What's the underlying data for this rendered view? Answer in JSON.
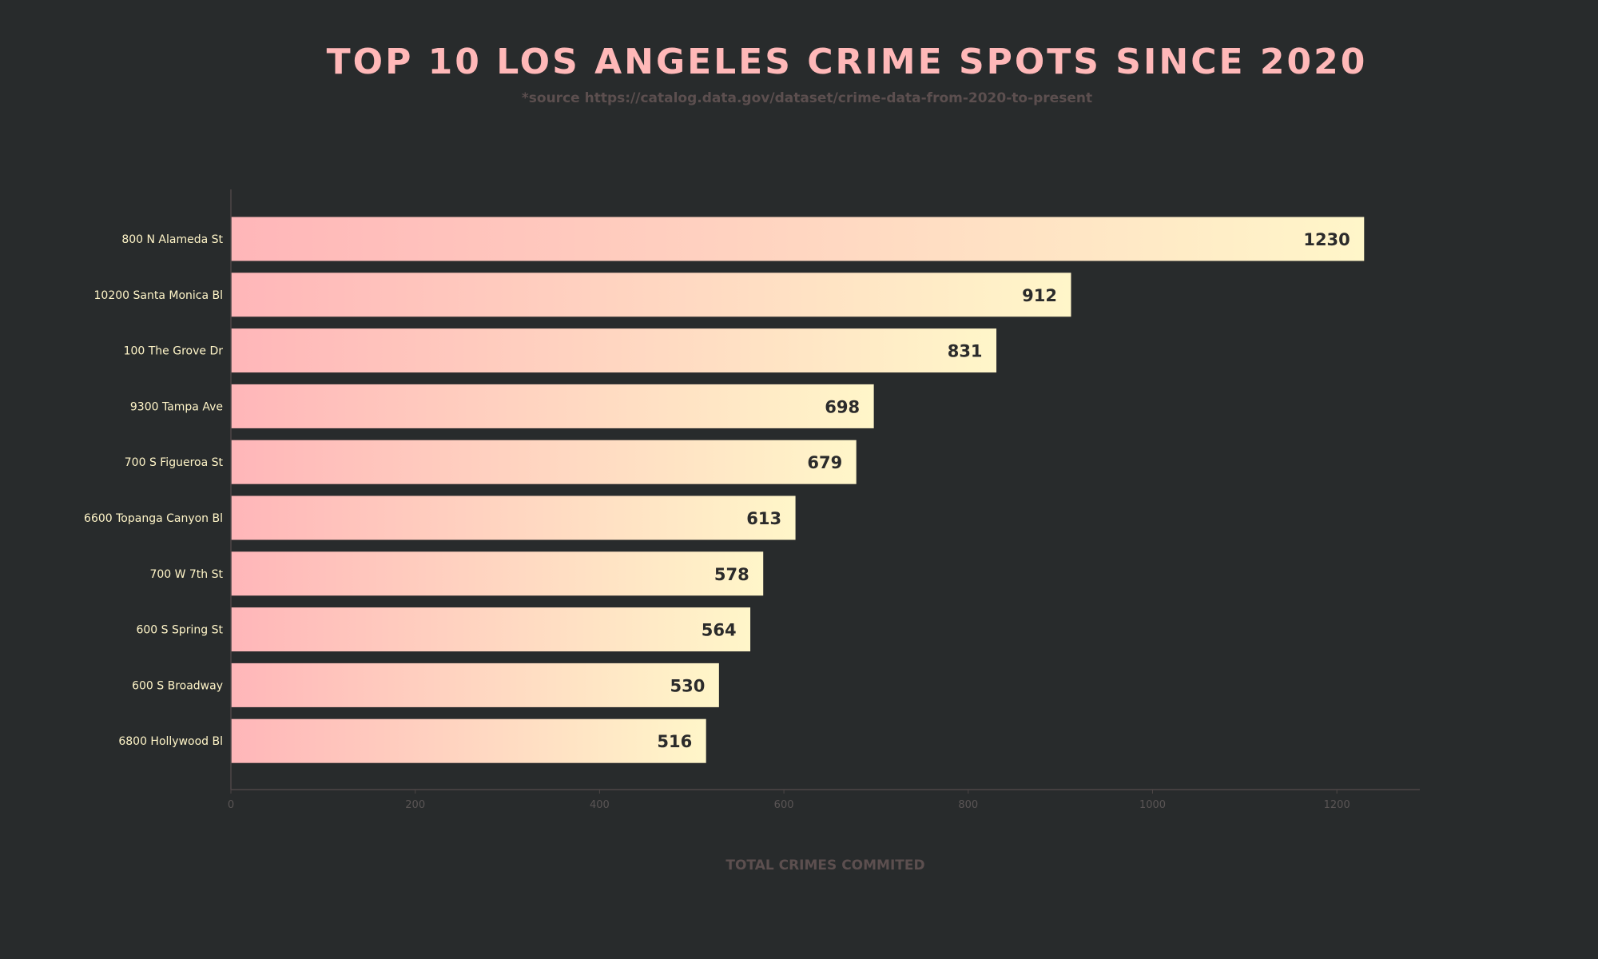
{
  "chart_data": {
    "type": "bar",
    "orientation": "horizontal",
    "title": "TOP 10 LOS ANGELES CRIME SPOTS SINCE 2020",
    "subtitle": "*source https://catalog.data.gov/dataset/crime-data-from-2020-to-present",
    "xlabel": "TOTAL CRIMES COMMITED",
    "ylabel": "",
    "categories": [
      "800 N Alameda St",
      "10200 Santa Monica Bl",
      "100 The Grove Dr",
      "9300 Tampa Ave",
      "700 S Figueroa St",
      "6600 Topanga Canyon Bl",
      "700 W 7th St",
      "600 S Spring St",
      "600 S Broadway",
      "6800 Hollywood Bl"
    ],
    "values": [
      1230,
      912,
      831,
      698,
      679,
      613,
      578,
      564,
      530,
      516
    ],
    "xlim": [
      0,
      1290
    ],
    "xticks": [
      0,
      200,
      400,
      600,
      800,
      1000,
      1200
    ],
    "grid": false,
    "legend": "none",
    "colors": {
      "background": "#282b2c",
      "bar_gradient_start": "#ffb6b9",
      "bar_gradient_end": "#fff6c9",
      "title": "#ffb8b8",
      "muted": "#5c4f4f",
      "category_text": "#fff5c8",
      "value_text": "#2b2b2b"
    }
  }
}
